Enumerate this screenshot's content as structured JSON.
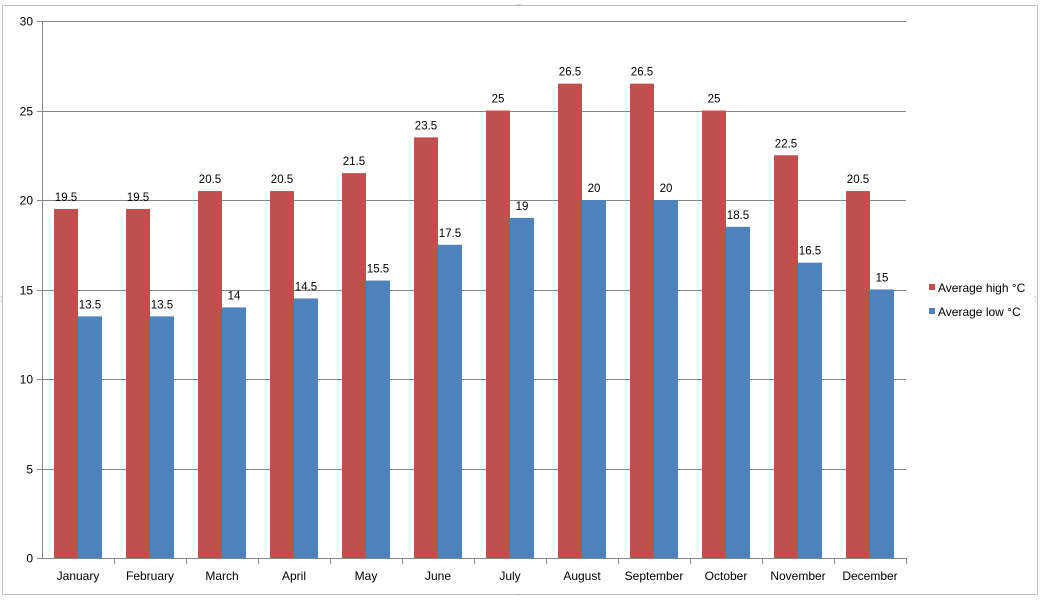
{
  "chart_data": {
    "type": "bar",
    "title": "",
    "xlabel": "",
    "ylabel": "",
    "categories": [
      "January",
      "February",
      "March",
      "April",
      "May",
      "June",
      "July",
      "August",
      "September",
      "October",
      "November",
      "December"
    ],
    "series": [
      {
        "name": "Average high °C",
        "color": "#c0504d",
        "values": [
          19.5,
          19.5,
          20.5,
          20.5,
          21.5,
          23.5,
          25,
          26.5,
          26.5,
          25,
          22.5,
          20.5
        ]
      },
      {
        "name": "Average low °C",
        "color": "#4f81bd",
        "values": [
          13.5,
          13.5,
          14,
          14.5,
          15.5,
          17.5,
          19,
          20,
          20,
          18.5,
          16.5,
          15
        ]
      }
    ],
    "ylim": [
      0,
      30
    ],
    "yticks": [
      0,
      5,
      10,
      15,
      20,
      25,
      30
    ],
    "grid": true,
    "legend_position": "right",
    "data_labels": true
  }
}
